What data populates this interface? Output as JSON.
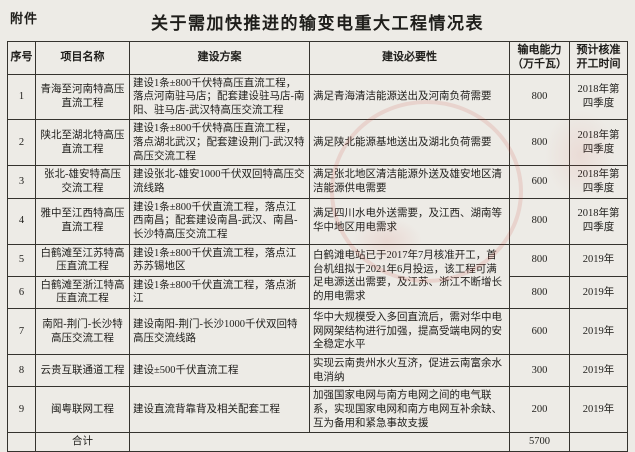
{
  "document": {
    "attachment_label": "附件",
    "title": "关于需加快推进的输变电重大工程情况表"
  },
  "colors": {
    "paper": "#edebe6",
    "table_border": "#35332e",
    "seal_red": "#cd463c"
  },
  "table": {
    "columns": [
      {
        "id": "no",
        "label": "序号"
      },
      {
        "id": "name",
        "label": "项目名称"
      },
      {
        "id": "plan",
        "label": "建设方案"
      },
      {
        "id": "necessity",
        "label": "建设必要性"
      },
      {
        "id": "capacity",
        "label": "输电能力\n（万千瓦）"
      },
      {
        "id": "start",
        "label": "预计核准\n开工时间"
      }
    ],
    "rows": [
      {
        "no": "1",
        "name": "青海至河南特高压直流工程",
        "plan": "建设1条±800千伏特高压直流工程，落点河南驻马店；配套建设驻马店-南阳、驻马店-武汉特高压交流工程",
        "necessity": "满足青海清洁能源送出及河南负荷需要",
        "necessity_span": 1,
        "capacity": "800",
        "start": "2018年第四季度"
      },
      {
        "no": "2",
        "name": "陕北至湖北特高压直流工程",
        "plan": "建设1条±800千伏特高压直流工程，落点湖北武汉；配套建设荆门-武汉特高压交流工程",
        "necessity": "满足陕北能源基地送出及湖北负荷需要",
        "necessity_span": 1,
        "capacity": "800",
        "start": "2018年第四季度"
      },
      {
        "no": "3",
        "name": "张北-雄安特高压交流工程",
        "plan": "建设张北-雄安1000千伏双回特高压交流线路",
        "necessity": "满足张北地区清洁能源外送及雄安地区清洁能源供电需要",
        "necessity_span": 1,
        "capacity": "600",
        "start": "2018年第四季度"
      },
      {
        "no": "4",
        "name": "雅中至江西特高压直流工程",
        "plan": "建设1条±800千伏直流工程，落点江西南昌；配套建设南昌-武汉、南昌-长沙特高压交流工程",
        "necessity": "满足四川水电外送需要，及江西、湖南等华中地区用电需求",
        "necessity_span": 1,
        "capacity": "800",
        "start": "2018年第四季度"
      },
      {
        "no": "5",
        "name": "白鹤滩至江苏特高压直流工程",
        "plan": "建设1条±800千伏直流工程，落点江苏苏锡地区",
        "necessity": "白鹤滩电站已于2017年7月核准开工，首台机组拟于2021年6月投运，该工程可满足电源送出需要，及江苏、浙江不断增长的用电需求",
        "necessity_span": 2,
        "capacity": "800",
        "start": "2019年"
      },
      {
        "no": "6",
        "name": "白鹤滩至浙江特高压直流工程",
        "plan": "建设1条±800千伏直流工程，落点浙江",
        "necessity": null,
        "necessity_span": 0,
        "capacity": "800",
        "start": "2019年"
      },
      {
        "no": "7",
        "name": "南阳-荆门-长沙特高压交流工程",
        "plan": "建设南阳-荆门-长沙1000千伏双回特高压交流线路",
        "necessity": "华中大规模受入多回直流后，需对华中电网网架结构进行加强，提高受端电网的安全稳定水平",
        "necessity_span": 1,
        "capacity": "600",
        "start": "2019年"
      },
      {
        "no": "8",
        "name": "云贵互联通道工程",
        "plan": "建设±500千伏直流工程",
        "necessity": "实现云南贵州水火互济，促进云南富余水电消纳",
        "necessity_span": 1,
        "capacity": "300",
        "start": "2019年"
      },
      {
        "no": "9",
        "name": "闽粤联网工程",
        "plan": "建设直流背靠背及相关配套工程",
        "necessity": "加强国家电网与南方电网之间的电气联系，实现国家电网和南方电网互补余缺、互为备用和紧急事故支援",
        "necessity_span": 1,
        "capacity": "200",
        "start": "2019年"
      }
    ],
    "footer": {
      "label": "合计",
      "total_capacity": "5700",
      "total_start": ""
    }
  }
}
